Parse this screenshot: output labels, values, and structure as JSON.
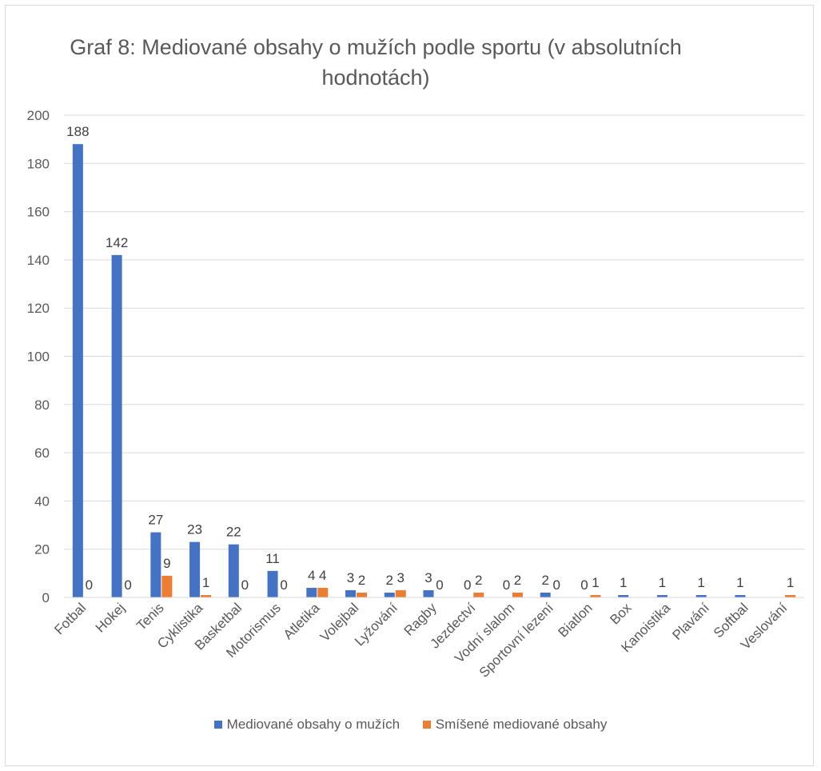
{
  "chart_data": {
    "type": "bar",
    "title": "Graf 8: Mediované obsahy o mužích podle sportu (v absolutních hodnotách)",
    "xlabel": "",
    "ylabel": "",
    "ylim": [
      0,
      200
    ],
    "yticks": [
      0,
      20,
      40,
      60,
      80,
      100,
      120,
      140,
      160,
      180,
      200
    ],
    "grid": true,
    "legend_position": "bottom",
    "categories": [
      "Fotbal",
      "Hokej",
      "Tenis",
      "Cyklistika",
      "Basketbal",
      "Motorismus",
      "Atletika",
      "Volejbal",
      "Lyžování",
      "Ragby",
      "Jezdectví",
      "Vodní slalom",
      "Sportovní lezení",
      "Biatlon",
      "Box",
      "Kanoistika",
      "Plavání",
      "Softbal",
      "Veslování"
    ],
    "series": [
      {
        "name": "Mediované obsahy o mužích",
        "color": "#4472C4",
        "values": [
          188,
          142,
          27,
          23,
          22,
          11,
          4,
          3,
          2,
          3,
          0,
          0,
          2,
          0,
          1,
          1,
          1,
          1,
          null
        ],
        "labels": [
          "188",
          "142",
          "27",
          "23",
          "22",
          "11",
          "4",
          "3",
          "2",
          "3",
          "0",
          "0",
          "2",
          "0",
          "1",
          "1",
          "1",
          "1",
          ""
        ]
      },
      {
        "name": "Smíšené mediované obsahy",
        "color": "#ED7D31",
        "values": [
          0,
          0,
          9,
          1,
          0,
          0,
          4,
          2,
          3,
          0,
          2,
          2,
          0,
          1,
          null,
          null,
          null,
          null,
          1
        ],
        "labels": [
          "0",
          "0",
          "9",
          "1",
          "0",
          "0",
          "4",
          "2",
          "3",
          "0",
          "2",
          "2",
          "0",
          "1",
          "",
          "",
          "",
          "",
          "1"
        ]
      }
    ]
  }
}
